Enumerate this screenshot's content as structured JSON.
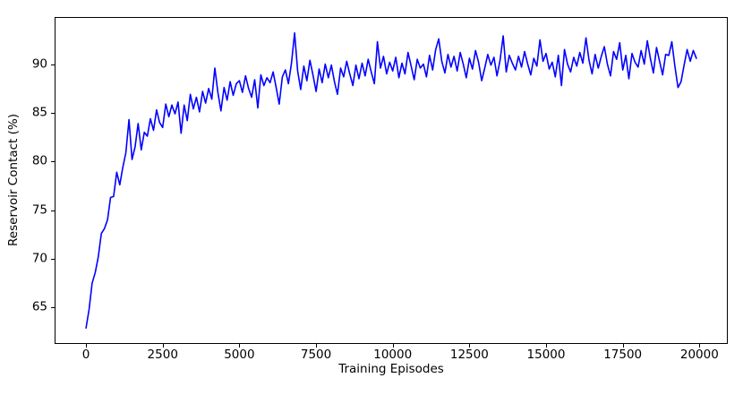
{
  "chart_data": {
    "type": "line",
    "title": "",
    "xlabel": "Training Episodes",
    "ylabel": "Reservoir Contact (%)",
    "xlim": [
      -995,
      20895
    ],
    "ylim": [
      61.35,
      94.75
    ],
    "xticks": [
      0,
      2500,
      5000,
      7500,
      10000,
      12500,
      15000,
      17500,
      20000
    ],
    "xtick_labels": [
      "0",
      "2500",
      "5000",
      "7500",
      "10000",
      "12500",
      "15000",
      "17500",
      "20000"
    ],
    "yticks": [
      65,
      70,
      75,
      80,
      85,
      90
    ],
    "ytick_labels": [
      "65",
      "70",
      "75",
      "80",
      "85",
      "90"
    ],
    "grid": false,
    "legend": null,
    "background_color": "#ffffff",
    "spine_color": "#000000",
    "series": [
      {
        "name": "reservoir-contact",
        "color": "#0000ff",
        "line_width": 1.6,
        "x_start": 0,
        "x_step": 100,
        "values": [
          62.9,
          64.8,
          67.5,
          68.6,
          70.2,
          72.6,
          73.1,
          74.0,
          76.3,
          76.4,
          78.9,
          77.6,
          79.4,
          80.9,
          84.3,
          80.2,
          81.5,
          83.9,
          81.2,
          83.0,
          82.6,
          84.4,
          83.2,
          85.3,
          84.0,
          83.5,
          85.9,
          84.6,
          85.8,
          84.9,
          86.1,
          82.9,
          85.8,
          84.2,
          86.9,
          85.4,
          86.6,
          85.1,
          87.2,
          86.0,
          87.5,
          86.4,
          89.6,
          87.1,
          85.2,
          87.6,
          86.3,
          88.2,
          86.8,
          88.0,
          88.3,
          87.1,
          88.8,
          87.5,
          86.6,
          88.4,
          85.5,
          88.9,
          87.8,
          88.6,
          88.1,
          89.2,
          87.6,
          85.9,
          88.7,
          89.4,
          88.0,
          90.1,
          93.2,
          89.3,
          87.4,
          89.8,
          88.3,
          90.4,
          88.9,
          87.2,
          89.5,
          88.1,
          90.0,
          88.6,
          89.9,
          88.2,
          86.9,
          89.6,
          88.7,
          90.3,
          89.0,
          87.8,
          89.9,
          88.5,
          90.1,
          88.8,
          90.5,
          89.2,
          88.0,
          92.3,
          89.6,
          90.8,
          89.0,
          90.2,
          89.3,
          90.7,
          88.6,
          90.1,
          89.0,
          91.2,
          89.8,
          88.4,
          90.5,
          89.6,
          90.0,
          88.7,
          90.9,
          89.4,
          91.5,
          92.6,
          90.3,
          89.1,
          91.0,
          89.7,
          90.8,
          89.3,
          91.2,
          90.0,
          88.6,
          90.6,
          89.5,
          91.4,
          90.2,
          88.3,
          89.6,
          91.0,
          89.9,
          90.7,
          88.8,
          90.4,
          92.9,
          89.2,
          90.9,
          90.1,
          89.4,
          90.8,
          89.7,
          91.3,
          90.0,
          88.9,
          90.6,
          89.8,
          92.5,
          90.3,
          91.1,
          89.5,
          90.2,
          88.7,
          90.9,
          87.8,
          91.5,
          90.0,
          89.2,
          90.7,
          89.8,
          91.2,
          90.1,
          92.7,
          90.4,
          89.0,
          91.0,
          89.6,
          90.8,
          91.8,
          90.0,
          88.8,
          91.3,
          90.5,
          92.2,
          89.4,
          90.9,
          88.5,
          91.1,
          90.2,
          89.7,
          91.4,
          90.0,
          92.4,
          90.6,
          89.1,
          91.7,
          90.3,
          88.9,
          91.0,
          90.9,
          92.3,
          89.8,
          87.6,
          88.2,
          89.9,
          91.5,
          90.3,
          91.4,
          90.6
        ]
      }
    ]
  }
}
